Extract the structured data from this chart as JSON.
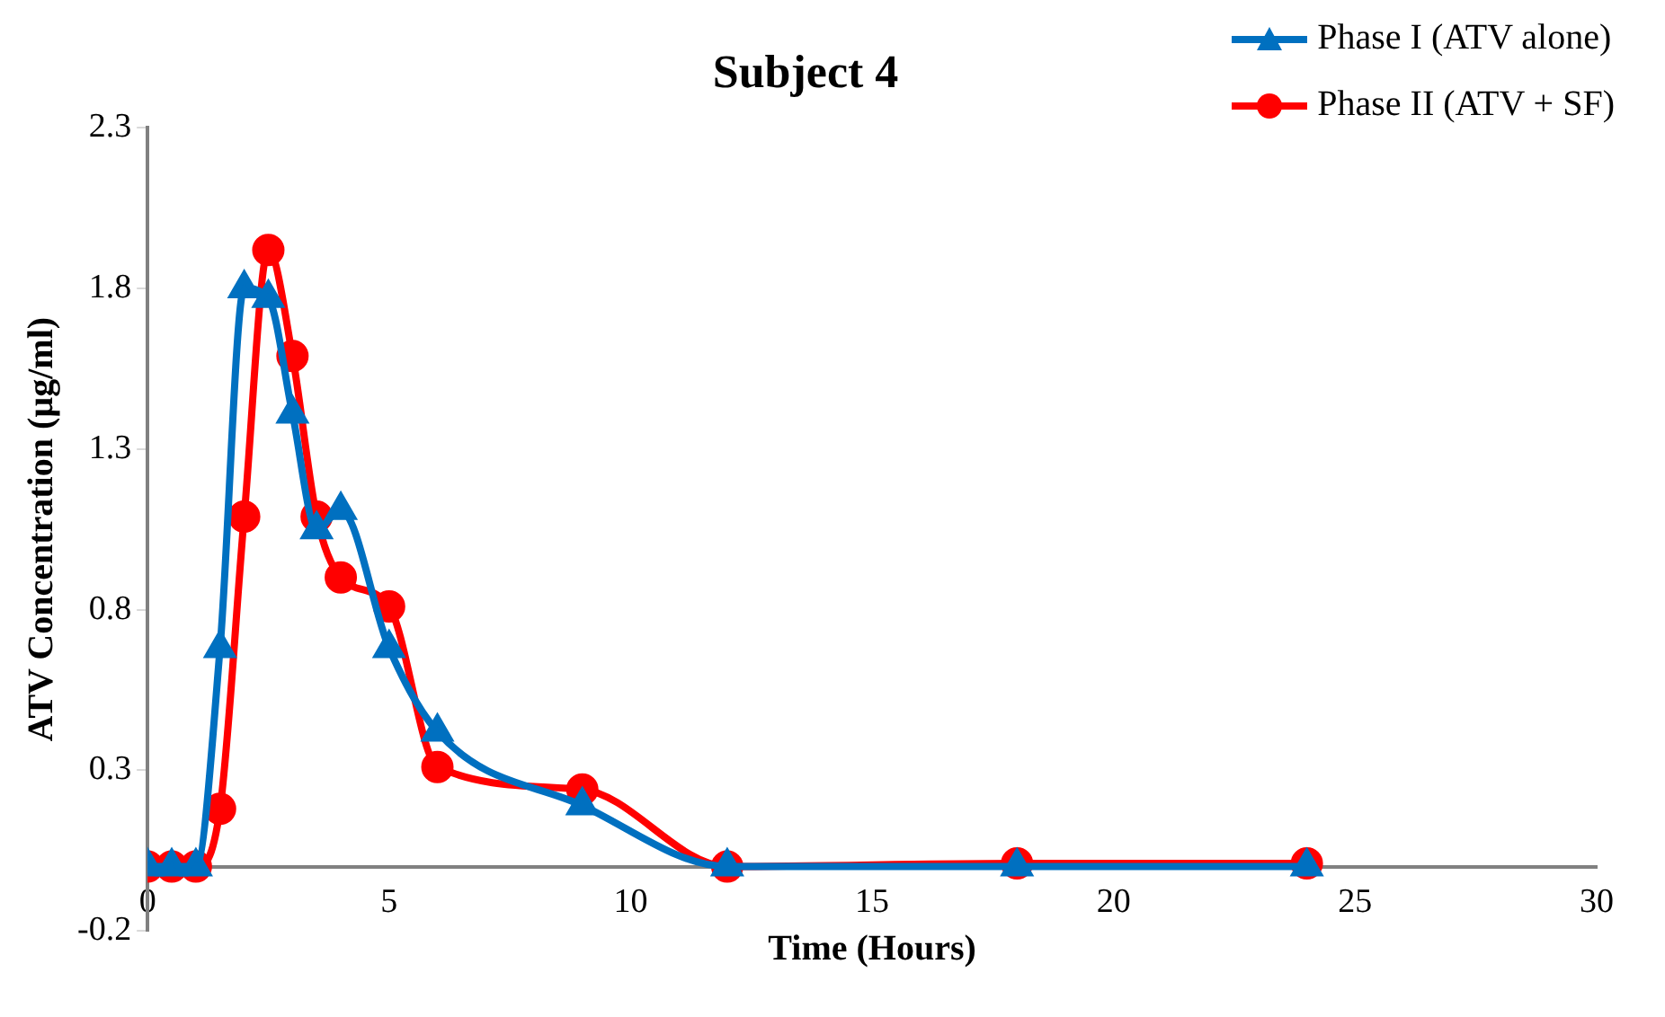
{
  "chart_data": {
    "type": "line",
    "title": "Subject 4",
    "xlabel": "Time (Hours)",
    "ylabel": "ATV Concentration (µg/ml)",
    "xlim": [
      0,
      30
    ],
    "xticks": [
      0,
      5,
      10,
      15,
      20,
      25,
      30
    ],
    "ylim": [
      -0.2,
      2.3
    ],
    "yticks": [
      -0.2,
      0.3,
      0.8,
      1.3,
      1.8,
      2.3
    ],
    "grid": false,
    "legend": "top right",
    "series": [
      {
        "name": "Phase I (ATV alone)",
        "color": "#0070c0",
        "marker": "triangle",
        "x": [
          0,
          0.5,
          1,
          1.5,
          2,
          2.5,
          3,
          3.5,
          4,
          5,
          6,
          9,
          12,
          18,
          24
        ],
        "values": [
          0,
          0,
          0,
          0.68,
          1.8,
          1.77,
          1.41,
          1.05,
          1.11,
          0.68,
          0.42,
          0.19,
          0,
          0,
          0
        ]
      },
      {
        "name": "Phase II (ATV + SF)",
        "color": "#ff0000",
        "marker": "circle",
        "x": [
          0,
          0.5,
          1,
          1.5,
          2,
          2.5,
          3,
          3.5,
          4,
          5,
          6,
          9,
          12,
          18,
          24
        ],
        "values": [
          0,
          0,
          0,
          0.18,
          1.09,
          1.92,
          1.59,
          1.09,
          0.9,
          0.81,
          0.31,
          0.24,
          0,
          0.01,
          0.01
        ]
      }
    ]
  }
}
